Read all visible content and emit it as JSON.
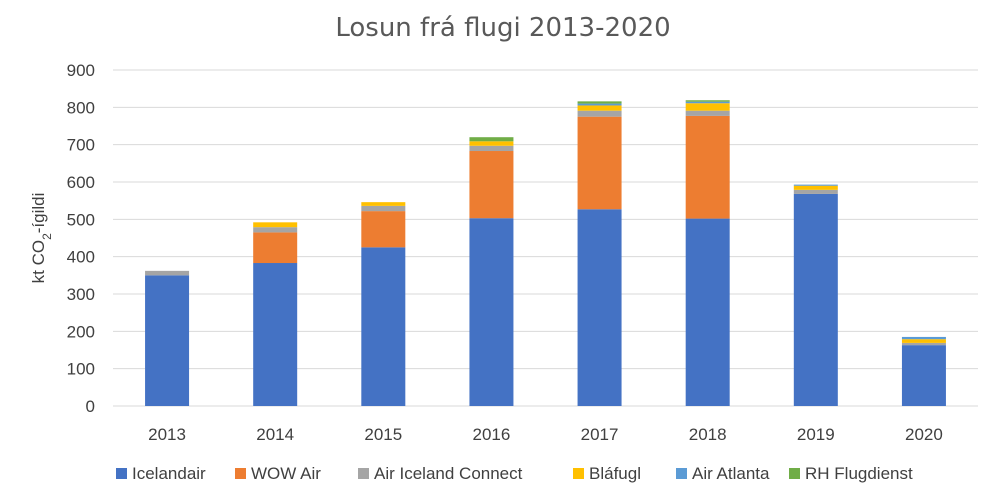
{
  "chart_data": {
    "type": "bar",
    "stacked": true,
    "title": "Losun frá flugi 2013-2020",
    "ylabel_main": "kt CO",
    "ylabel_sub": "2",
    "ylabel_suffix": "-ígildi",
    "xlabel": "",
    "ylim": [
      0,
      900
    ],
    "yticks": [
      0,
      100,
      200,
      300,
      400,
      500,
      600,
      700,
      800,
      900
    ],
    "grid": true,
    "legend_position": "bottom",
    "categories": [
      "2013",
      "2014",
      "2015",
      "2016",
      "2017",
      "2018",
      "2019",
      "2020"
    ],
    "series": [
      {
        "name": "Icelandair",
        "color": "#4472C4",
        "values": [
          350,
          383,
          425,
          503,
          527,
          502,
          568,
          163
        ]
      },
      {
        "name": "WOW Air",
        "color": "#ED7D31",
        "values": [
          0,
          82,
          97,
          180,
          248,
          275,
          0,
          0
        ]
      },
      {
        "name": "Air Iceland Connect",
        "color": "#A5A5A5",
        "values": [
          12,
          14,
          14,
          14,
          16,
          14,
          11,
          6
        ]
      },
      {
        "name": "Bláfugl",
        "color": "#FFC000",
        "values": [
          0,
          13,
          10,
          12,
          14,
          20,
          11,
          10
        ]
      },
      {
        "name": "Air Atlanta",
        "color": "#5B9BD5",
        "values": [
          0,
          0,
          0,
          0,
          5,
          4,
          3,
          6
        ]
      },
      {
        "name": "RH Flugdienst",
        "color": "#70AD47",
        "values": [
          0,
          0,
          0,
          11,
          6,
          4,
          0,
          0
        ]
      }
    ]
  }
}
